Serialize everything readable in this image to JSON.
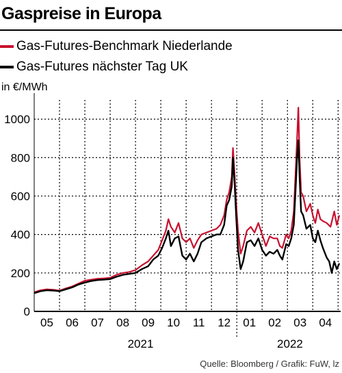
{
  "header": {
    "title": "Gaspreise in Europa",
    "source": "Quelle: Bloomberg / Grafik: FuW, lz"
  },
  "chart_data": {
    "type": "line",
    "title": "Gaspreise in Europa",
    "ylabel": "in €/MWh",
    "ylim": [
      0,
      1100
    ],
    "yticks": [
      0,
      200,
      400,
      600,
      800,
      1000
    ],
    "xlim": [
      4.5,
      16.6
    ],
    "month_ticks": [
      {
        "x": 5,
        "label": "05"
      },
      {
        "x": 6,
        "label": "06"
      },
      {
        "x": 7,
        "label": "07"
      },
      {
        "x": 8,
        "label": "08"
      },
      {
        "x": 9,
        "label": "09"
      },
      {
        "x": 10,
        "label": "10"
      },
      {
        "x": 11,
        "label": "11"
      },
      {
        "x": 12,
        "label": "12"
      },
      {
        "x": 13,
        "label": "01"
      },
      {
        "x": 14,
        "label": "02"
      },
      {
        "x": 15,
        "label": "03"
      },
      {
        "x": 16,
        "label": "04"
      }
    ],
    "years": [
      {
        "label": "2021",
        "center": 8.7
      },
      {
        "label": "2022",
        "center": 14.6
      }
    ],
    "year_divider": 12.5,
    "grid": true,
    "legend_position": "top-left",
    "series": [
      {
        "name": "Gas-Futures-Benchmark Niederlande",
        "color": "#c8102e",
        "points": [
          [
            4.5,
            100
          ],
          [
            4.75,
            110
          ],
          [
            5.0,
            115
          ],
          [
            5.3,
            112
          ],
          [
            5.5,
            108
          ],
          [
            5.75,
            120
          ],
          [
            6.0,
            130
          ],
          [
            6.25,
            145
          ],
          [
            6.5,
            160
          ],
          [
            6.75,
            165
          ],
          [
            7.0,
            170
          ],
          [
            7.25,
            172
          ],
          [
            7.5,
            175
          ],
          [
            7.75,
            190
          ],
          [
            8.0,
            200
          ],
          [
            8.25,
            205
          ],
          [
            8.5,
            215
          ],
          [
            8.75,
            240
          ],
          [
            9.0,
            260
          ],
          [
            9.2,
            290
          ],
          [
            9.4,
            320
          ],
          [
            9.55,
            370
          ],
          [
            9.7,
            420
          ],
          [
            9.8,
            480
          ],
          [
            9.9,
            440
          ],
          [
            10.05,
            410
          ],
          [
            10.2,
            460
          ],
          [
            10.35,
            380
          ],
          [
            10.5,
            360
          ],
          [
            10.65,
            380
          ],
          [
            10.8,
            330
          ],
          [
            10.95,
            370
          ],
          [
            11.1,
            400
          ],
          [
            11.3,
            410
          ],
          [
            11.5,
            420
          ],
          [
            11.7,
            430
          ],
          [
            11.85,
            450
          ],
          [
            12.0,
            500
          ],
          [
            12.1,
            580
          ],
          [
            12.2,
            620
          ],
          [
            12.3,
            700
          ],
          [
            12.35,
            850
          ],
          [
            12.42,
            700
          ],
          [
            12.48,
            550
          ],
          [
            12.55,
            420
          ],
          [
            12.65,
            300
          ],
          [
            12.75,
            340
          ],
          [
            12.9,
            420
          ],
          [
            13.05,
            440
          ],
          [
            13.2,
            410
          ],
          [
            13.35,
            460
          ],
          [
            13.5,
            400
          ],
          [
            13.65,
            340
          ],
          [
            13.8,
            390
          ],
          [
            13.95,
            380
          ],
          [
            14.1,
            380
          ],
          [
            14.2,
            340
          ],
          [
            14.3,
            330
          ],
          [
            14.45,
            400
          ],
          [
            14.55,
            380
          ],
          [
            14.65,
            420
          ],
          [
            14.75,
            520
          ],
          [
            14.82,
            720
          ],
          [
            14.88,
            900
          ],
          [
            14.93,
            1060
          ],
          [
            14.98,
            800
          ],
          [
            15.04,
            620
          ],
          [
            15.12,
            600
          ],
          [
            15.25,
            520
          ],
          [
            15.4,
            560
          ],
          [
            15.5,
            500
          ],
          [
            15.6,
            460
          ],
          [
            15.7,
            530
          ],
          [
            15.8,
            480
          ],
          [
            15.9,
            470
          ],
          [
            16.05,
            460
          ],
          [
            16.2,
            440
          ],
          [
            16.35,
            520
          ],
          [
            16.45,
            450
          ],
          [
            16.55,
            500
          ]
        ]
      },
      {
        "name": "Gas-Futures nächster Tag UK",
        "color": "#000000",
        "points": [
          [
            4.5,
            95
          ],
          [
            4.75,
            105
          ],
          [
            5.0,
            110
          ],
          [
            5.3,
            108
          ],
          [
            5.5,
            105
          ],
          [
            5.75,
            115
          ],
          [
            6.0,
            125
          ],
          [
            6.25,
            140
          ],
          [
            6.5,
            150
          ],
          [
            6.75,
            158
          ],
          [
            7.0,
            163
          ],
          [
            7.25,
            165
          ],
          [
            7.5,
            168
          ],
          [
            7.75,
            180
          ],
          [
            8.0,
            190
          ],
          [
            8.25,
            195
          ],
          [
            8.5,
            200
          ],
          [
            8.75,
            220
          ],
          [
            9.0,
            235
          ],
          [
            9.2,
            270
          ],
          [
            9.4,
            290
          ],
          [
            9.55,
            330
          ],
          [
            9.7,
            380
          ],
          [
            9.8,
            420
          ],
          [
            9.9,
            340
          ],
          [
            10.05,
            380
          ],
          [
            10.2,
            390
          ],
          [
            10.35,
            290
          ],
          [
            10.5,
            270
          ],
          [
            10.65,
            300
          ],
          [
            10.8,
            260
          ],
          [
            10.95,
            300
          ],
          [
            11.1,
            360
          ],
          [
            11.3,
            380
          ],
          [
            11.5,
            390
          ],
          [
            11.7,
            400
          ],
          [
            11.85,
            400
          ],
          [
            12.0,
            450
          ],
          [
            12.1,
            550
          ],
          [
            12.2,
            580
          ],
          [
            12.3,
            650
          ],
          [
            12.35,
            800
          ],
          [
            12.42,
            650
          ],
          [
            12.48,
            480
          ],
          [
            12.55,
            320
          ],
          [
            12.65,
            220
          ],
          [
            12.75,
            260
          ],
          [
            12.9,
            360
          ],
          [
            13.05,
            370
          ],
          [
            13.2,
            340
          ],
          [
            13.35,
            380
          ],
          [
            13.5,
            320
          ],
          [
            13.65,
            290
          ],
          [
            13.8,
            310
          ],
          [
            13.95,
            300
          ],
          [
            14.1,
            320
          ],
          [
            14.2,
            290
          ],
          [
            14.3,
            270
          ],
          [
            14.45,
            350
          ],
          [
            14.55,
            340
          ],
          [
            14.65,
            380
          ],
          [
            14.75,
            450
          ],
          [
            14.82,
            630
          ],
          [
            14.88,
            800
          ],
          [
            14.93,
            890
          ],
          [
            14.98,
            700
          ],
          [
            15.04,
            520
          ],
          [
            15.12,
            500
          ],
          [
            15.25,
            430
          ],
          [
            15.4,
            450
          ],
          [
            15.5,
            380
          ],
          [
            15.6,
            360
          ],
          [
            15.7,
            420
          ],
          [
            15.8,
            370
          ],
          [
            15.9,
            330
          ],
          [
            16.05,
            280
          ],
          [
            16.15,
            260
          ],
          [
            16.25,
            200
          ],
          [
            16.35,
            260
          ],
          [
            16.45,
            220
          ],
          [
            16.55,
            250
          ]
        ]
      }
    ]
  }
}
